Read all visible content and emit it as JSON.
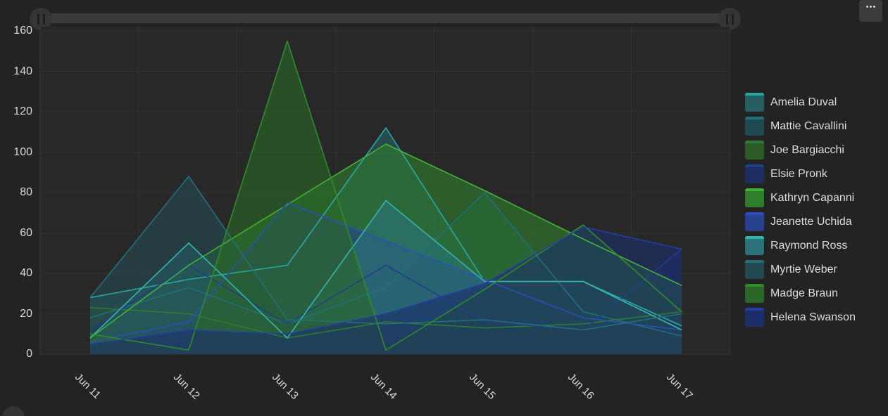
{
  "colors": {
    "page_bg": "#232323",
    "plot_bg": "#282828",
    "grid": "#313131",
    "axis": "#3a3a3a",
    "tick_text": "#d8d9da",
    "legend_text": "#dcdcdc",
    "scroll_track": "#3a3a3a",
    "scroll_handle": "#353535",
    "scroll_grip": "#1d1d1d",
    "menu_button_bg": "#3b3b3b",
    "menu_dots": "#d8d8d8"
  },
  "toolbar": {
    "menu_icon": "kebab-horizontal-icon"
  },
  "scrubber": {
    "left_handle_icon": "grip-bars-icon",
    "right_handle_icon": "grip-bars-icon"
  },
  "chart_data": {
    "type": "area",
    "title": "",
    "xlabel": "",
    "ylabel": "",
    "categories": [
      "Jun 11",
      "Jun 12",
      "Jun 13",
      "Jun 14",
      "Jun 15",
      "Jun 16",
      "Jun 17"
    ],
    "series": [
      {
        "name": "Amelia Duval",
        "line": "#2aa7a3",
        "fill": "#265f63",
        "values": [
          28,
          37,
          44,
          112,
          36,
          36,
          14
        ]
      },
      {
        "name": "Mattie Cavallini",
        "line": "#20707c",
        "fill": "#1f4a52",
        "values": [
          18,
          33,
          15,
          33,
          80,
          21,
          9
        ]
      },
      {
        "name": "Joe Bargiacchi",
        "line": "#2e7c31",
        "fill": "#2c5b28",
        "values": [
          23,
          20,
          8,
          16,
          13,
          15,
          21
        ]
      },
      {
        "name": "Elsie Pronk",
        "line": "#223f85",
        "fill": "#1d2e62",
        "values": [
          12,
          44,
          15,
          44,
          16,
          12,
          52
        ]
      },
      {
        "name": "Kathryn Capanni",
        "line": "#41b235",
        "fill": "#2f7e2b",
        "values": [
          8,
          44,
          74,
          104,
          81,
          57,
          34
        ]
      },
      {
        "name": "Jeanette Uchida",
        "line": "#2c4fb5",
        "fill": "#27418c",
        "values": [
          6,
          16,
          75,
          56,
          37,
          18,
          12
        ]
      },
      {
        "name": "Raymond Ross",
        "line": "#36b3ac",
        "fill": "#2a7277",
        "values": [
          8,
          55,
          8,
          76,
          36,
          36,
          12
        ]
      },
      {
        "name": "Myrtie Weber",
        "line": "#22707a",
        "fill": "#234a50",
        "values": [
          28,
          88,
          17,
          15,
          17,
          12,
          20
        ]
      },
      {
        "name": "Madge Braun",
        "line": "#2f8c2c",
        "fill": "#2a6827",
        "values": [
          10,
          2,
          155,
          2,
          32,
          64,
          21
        ]
      },
      {
        "name": "Helena Swanson",
        "line": "#2340a0",
        "fill": "#1c2f6b",
        "values": [
          5,
          12,
          10,
          20,
          35,
          63,
          52
        ]
      }
    ],
    "ylim": [
      0,
      160
    ],
    "yticks": [
      0,
      20,
      40,
      60,
      80,
      100,
      120,
      140,
      160
    ],
    "grid": true,
    "legend_position": "right",
    "fill_opacity": 0.62
  }
}
